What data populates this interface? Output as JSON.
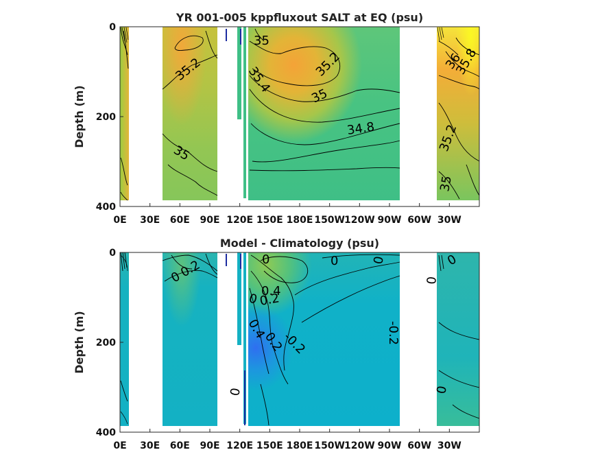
{
  "chart_data": [
    {
      "type": "heatmap",
      "subtype": "contour",
      "title": "YR 001-005 kppfluxout SALT at EQ (psu)",
      "ylabel": "Depth (m)",
      "xlabel": "",
      "xticks": [
        "0E",
        "30E",
        "60E",
        "90E",
        "120E",
        "150E",
        "180E",
        "150W",
        "120W",
        "90W",
        "60W",
        "30W"
      ],
      "yticks": [
        "0",
        "200",
        "400"
      ],
      "ylim": [
        0,
        400
      ],
      "y_reversed": true,
      "colormap": "parula",
      "contour_labels": [
        "35",
        "35.2",
        "35",
        "35.4",
        "35.2",
        "35",
        "34.8",
        "35.2",
        "35",
        "36",
        "35.8"
      ],
      "features": {
        "western_pacific_surface": 35.0,
        "high_salinity_core_central_pacific_100m": 35.4,
        "deep_pacific": 34.8,
        "atlantic_surface_max": 36.0
      }
    },
    {
      "type": "heatmap",
      "subtype": "contour",
      "title": "Model - Climatology (psu)",
      "ylabel": "Depth (m)",
      "xlabel": "",
      "xticks": [
        "0E",
        "30E",
        "60E",
        "90E",
        "120E",
        "150E",
        "180E",
        "150W",
        "120W",
        "90W",
        "60W",
        "30W"
      ],
      "yticks": [
        "0",
        "200",
        "400"
      ],
      "ylim": [
        0,
        400
      ],
      "y_reversed": true,
      "colormap": "parula",
      "contour_labels": [
        "0",
        "0.2",
        "0",
        "0",
        "0",
        "0.4",
        "0.2",
        "0",
        "0.4",
        "0.2",
        "-0.2",
        "-0.2",
        "0",
        "0",
        "0",
        "0"
      ],
      "features": {
        "positive_anomaly_west_pacific_surface": 0.4,
        "negative_anomaly_west_pacific_deep": -0.4,
        "central_pacific_thermocline": -0.2
      }
    }
  ]
}
